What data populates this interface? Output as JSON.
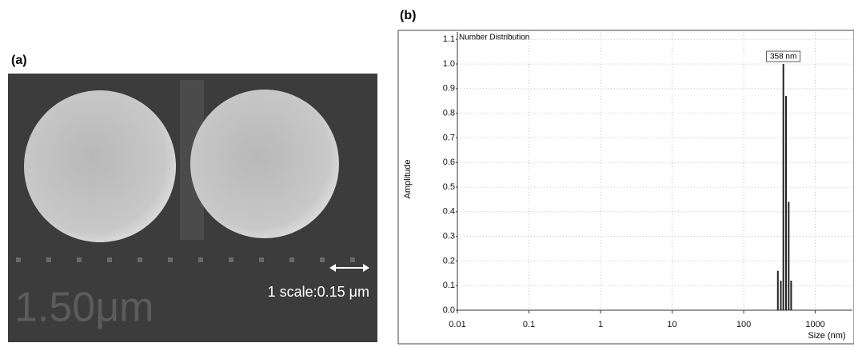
{
  "panel_a": {
    "label": "(a)",
    "scale_text": "1 scale:0.15 μm",
    "overlay_text": "1.50μm"
  },
  "chart_data": {
    "type": "bar",
    "panel_label": "(b)",
    "title": "Number Distribution",
    "annotation": "358 nm",
    "x_label": "Size (nm)",
    "y_label": "Amplitude",
    "x": [
      300,
      330,
      358,
      390,
      425,
      460
    ],
    "values": [
      0.16,
      0.12,
      1.0,
      0.87,
      0.44,
      0.12
    ],
    "color": "#222222",
    "log_x": true,
    "xlim": [
      0.01,
      3300
    ],
    "xticks": [
      0.01,
      0.1,
      1,
      10,
      100,
      1000
    ],
    "ylim": [
      0,
      1.13
    ],
    "yticks": [
      {
        "value": 0,
        "label": "0.0"
      },
      0.1,
      0.2,
      0.3,
      0.4,
      0.5,
      0.6,
      0.7,
      0.8,
      0.9,
      {
        "value": 1,
        "label": "1.0"
      },
      1.1
    ],
    "grid": true
  }
}
